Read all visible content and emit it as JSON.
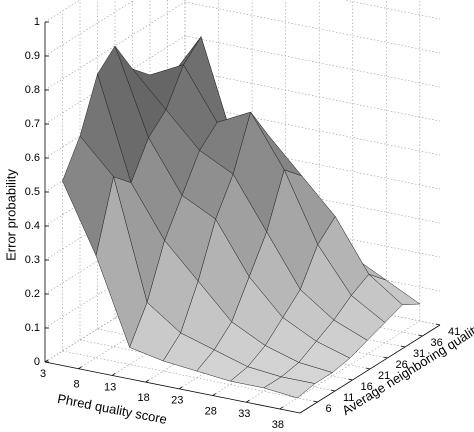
{
  "chart_data": {
    "type": "surface",
    "xlabel": "Phred quality score",
    "ylabel": "Average neighboring quality",
    "zlabel": "Error probability",
    "x": [
      3,
      8,
      13,
      18,
      23,
      28,
      33,
      38
    ],
    "y": [
      6,
      11,
      16,
      21,
      26,
      31,
      36,
      41
    ],
    "z": [
      [
        0.5,
        0.6,
        0.75,
        0.8,
        0.7,
        0.65,
        0.6,
        0.5
      ],
      [
        0.3,
        0.5,
        0.45,
        0.55,
        0.6,
        0.7,
        0.75,
        0.5
      ],
      [
        0.05,
        0.15,
        0.3,
        0.4,
        0.5,
        0.55,
        0.45,
        0.3
      ],
      [
        0.03,
        0.08,
        0.2,
        0.35,
        0.45,
        0.6,
        0.5,
        0.25
      ],
      [
        0.02,
        0.05,
        0.1,
        0.2,
        0.3,
        0.45,
        0.4,
        0.2
      ],
      [
        0.01,
        0.02,
        0.05,
        0.1,
        0.15,
        0.25,
        0.3,
        0.15
      ],
      [
        0.01,
        0.01,
        0.02,
        0.05,
        0.08,
        0.12,
        0.15,
        0.1
      ],
      [
        0,
        0.01,
        0.01,
        0.02,
        0.04,
        0.06,
        0.08,
        0.05
      ]
    ],
    "xlim": [
      3,
      41
    ],
    "ylim": [
      1,
      41
    ],
    "zlim": [
      0,
      1
    ],
    "xticks": [
      3,
      8,
      13,
      18,
      23,
      28,
      33,
      38
    ],
    "yticks": [
      6,
      11,
      16,
      21,
      26,
      31,
      36,
      41
    ],
    "zticks": [
      0,
      0.1,
      0.2,
      0.3,
      0.4,
      0.5,
      0.6,
      0.7,
      0.8,
      0.9,
      1
    ],
    "grid": true
  }
}
